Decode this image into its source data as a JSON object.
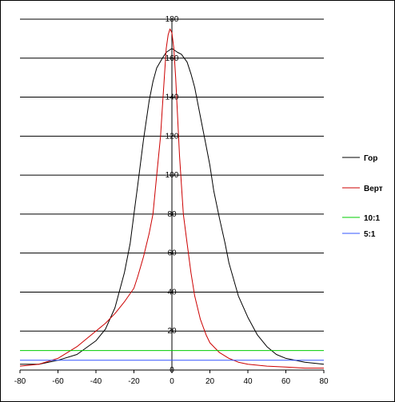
{
  "chart_data": {
    "type": "line",
    "title": "",
    "xlabel": "",
    "ylabel": "",
    "xlim": [
      -80,
      80
    ],
    "ylim": [
      0,
      180
    ],
    "x_ticks": [
      -80,
      -60,
      -40,
      -20,
      0,
      20,
      40,
      60,
      80
    ],
    "y_ticks": [
      0,
      20,
      40,
      60,
      80,
      100,
      120,
      140,
      160,
      180
    ],
    "x_tick_labels": [
      "-80",
      "-60",
      "-40",
      "-20",
      "0",
      "20",
      "40",
      "60",
      "80"
    ],
    "y_tick_labels": [
      "0",
      "20",
      "40",
      "60",
      "80",
      "100",
      "120",
      "140",
      "160",
      "180"
    ],
    "grid": {
      "horizontal": true,
      "vertical": false
    },
    "legend_position": "right",
    "series": [
      {
        "name": "Гор",
        "color": "#000000",
        "points": [
          [
            -80,
            3
          ],
          [
            -70,
            3
          ],
          [
            -60,
            5
          ],
          [
            -50,
            8
          ],
          [
            -40,
            15
          ],
          [
            -35,
            21
          ],
          [
            -30,
            32
          ],
          [
            -25,
            50
          ],
          [
            -22,
            65
          ],
          [
            -20,
            80
          ],
          [
            -18,
            95
          ],
          [
            -15,
            118
          ],
          [
            -12,
            138
          ],
          [
            -10,
            148
          ],
          [
            -8,
            155
          ],
          [
            -5,
            160
          ],
          [
            -3,
            163
          ],
          [
            0,
            165
          ],
          [
            3,
            163
          ],
          [
            5,
            162
          ],
          [
            8,
            158
          ],
          [
            10,
            152
          ],
          [
            12,
            145
          ],
          [
            15,
            130
          ],
          [
            18,
            115
          ],
          [
            20,
            105
          ],
          [
            22,
            92
          ],
          [
            25,
            78
          ],
          [
            28,
            65
          ],
          [
            30,
            55
          ],
          [
            35,
            38
          ],
          [
            40,
            27
          ],
          [
            45,
            18
          ],
          [
            50,
            12
          ],
          [
            55,
            8
          ],
          [
            60,
            6
          ],
          [
            70,
            4
          ],
          [
            80,
            3
          ]
        ]
      },
      {
        "name": "Верт",
        "color": "#cc0000",
        "points": [
          [
            -80,
            2
          ],
          [
            -70,
            3
          ],
          [
            -60,
            6
          ],
          [
            -55,
            9
          ],
          [
            -50,
            12
          ],
          [
            -45,
            16
          ],
          [
            -40,
            20
          ],
          [
            -35,
            24
          ],
          [
            -30,
            29
          ],
          [
            -25,
            35
          ],
          [
            -20,
            42
          ],
          [
            -18,
            48
          ],
          [
            -15,
            58
          ],
          [
            -12,
            70
          ],
          [
            -10,
            80
          ],
          [
            -8,
            100
          ],
          [
            -6,
            120
          ],
          [
            -5,
            135
          ],
          [
            -4,
            150
          ],
          [
            -3,
            165
          ],
          [
            -2,
            172
          ],
          [
            -1,
            175
          ],
          [
            0,
            173
          ],
          [
            1,
            165
          ],
          [
            2,
            150
          ],
          [
            3,
            130
          ],
          [
            4,
            110
          ],
          [
            5,
            95
          ],
          [
            6,
            80
          ],
          [
            8,
            65
          ],
          [
            10,
            50
          ],
          [
            12,
            38
          ],
          [
            15,
            26
          ],
          [
            18,
            18
          ],
          [
            20,
            14
          ],
          [
            25,
            9
          ],
          [
            30,
            6
          ],
          [
            35,
            4
          ],
          [
            40,
            3
          ],
          [
            50,
            2
          ],
          [
            60,
            1.5
          ],
          [
            70,
            1
          ],
          [
            80,
            1
          ]
        ]
      },
      {
        "name": "10:1",
        "color": "#00cc00",
        "points": [
          [
            -80,
            10
          ],
          [
            80,
            10
          ]
        ]
      },
      {
        "name": "5:1",
        "color": "#3355ff",
        "points": [
          [
            -80,
            5
          ],
          [
            80,
            5
          ]
        ]
      }
    ]
  }
}
